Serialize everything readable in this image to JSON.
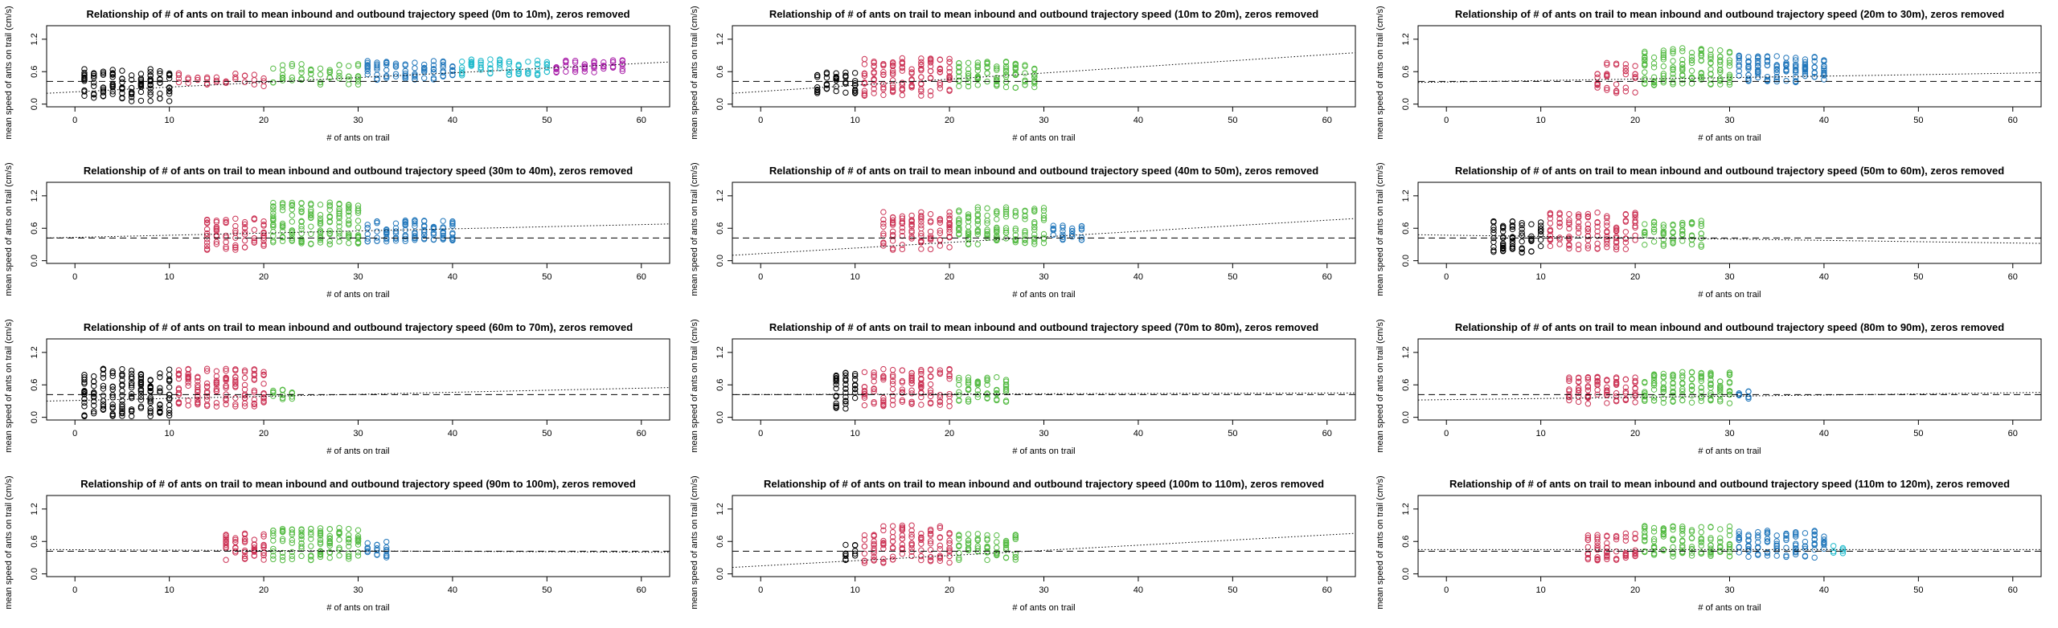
{
  "chart_data": [
    {
      "type": "scatter",
      "title": "Relationship of # of ants on trail to mean inbound and outbound trajectory speed (0m to 10m), zeros removed",
      "xlabel": "# of ants on trail",
      "ylabel": "mean speed of ants on trail (cm/s)",
      "xlim": [
        -3,
        63
      ],
      "ylim": [
        -0.05,
        1.45
      ],
      "xticks": [
        0,
        10,
        20,
        30,
        40,
        50,
        60
      ],
      "yticks": [
        0.0,
        0.6,
        1.2
      ],
      "ytick_labels": [
        "0.0",
        "0.6",
        "1.2"
      ],
      "dashed_mean": 0.42,
      "fit_line": {
        "x": [
          -3,
          63
        ],
        "y": [
          0.2,
          0.78
        ]
      },
      "point_groups": [
        {
          "color": "#000000",
          "from": 1,
          "to": 10,
          "center": 0.35,
          "spread": 0.3,
          "n": 14
        },
        {
          "color": "#CC3355",
          "from": 11,
          "to": 20,
          "center": 0.45,
          "spread": 0.12,
          "n": 4
        },
        {
          "color": "#55BB44",
          "from": 21,
          "to": 30,
          "center": 0.55,
          "spread": 0.2,
          "n": 7
        },
        {
          "color": "#2277BB",
          "from": 31,
          "to": 40,
          "center": 0.62,
          "spread": 0.18,
          "n": 9
        },
        {
          "color": "#22BBCC",
          "from": 41,
          "to": 50,
          "center": 0.68,
          "spread": 0.15,
          "n": 9
        },
        {
          "color": "#AA22AA",
          "from": 51,
          "to": 58,
          "center": 0.7,
          "spread": 0.12,
          "n": 8
        }
      ]
    },
    {
      "type": "scatter",
      "title": "Relationship of # of ants on trail to mean inbound and outbound trajectory speed (10m to 20m), zeros removed",
      "xlabel": "# of ants on trail",
      "ylabel": "mean speed of ants on trail (cm/s)",
      "xlim": [
        -3,
        63
      ],
      "ylim": [
        -0.05,
        1.45
      ],
      "xticks": [
        0,
        10,
        20,
        30,
        40,
        50,
        60
      ],
      "yticks": [
        0.0,
        0.6,
        1.2
      ],
      "ytick_labels": [
        "0.0",
        "0.6",
        "1.2"
      ],
      "dashed_mean": 0.42,
      "fit_line": {
        "x": [
          -3,
          63
        ],
        "y": [
          0.2,
          0.95
        ]
      },
      "point_groups": [
        {
          "color": "#000000",
          "from": 6,
          "to": 10,
          "center": 0.4,
          "spread": 0.2,
          "n": 12
        },
        {
          "color": "#CC3355",
          "from": 11,
          "to": 20,
          "center": 0.5,
          "spread": 0.35,
          "n": 14
        },
        {
          "color": "#55BB44",
          "from": 21,
          "to": 29,
          "center": 0.55,
          "spread": 0.25,
          "n": 12
        }
      ]
    },
    {
      "type": "scatter",
      "title": "Relationship of # of ants on trail to mean inbound and outbound trajectory speed (20m to 30m), zeros removed",
      "xlabel": "# of ants on trail",
      "ylabel": "mean speed of ants on trail (cm/s)",
      "xlim": [
        -3,
        63
      ],
      "ylim": [
        -0.05,
        1.45
      ],
      "xticks": [
        0,
        10,
        20,
        30,
        40,
        50,
        60
      ],
      "yticks": [
        0.0,
        0.6,
        1.2
      ],
      "ytick_labels": [
        "0.0",
        "0.6",
        "1.2"
      ],
      "dashed_mean": 0.42,
      "fit_line": {
        "x": [
          -3,
          63
        ],
        "y": [
          0.4,
          0.58
        ]
      },
      "point_groups": [
        {
          "color": "#CC3355",
          "from": 16,
          "to": 20,
          "center": 0.5,
          "spread": 0.3,
          "n": 10
        },
        {
          "color": "#55BB44",
          "from": 21,
          "to": 30,
          "center": 0.7,
          "spread": 0.35,
          "n": 16
        },
        {
          "color": "#2277BB",
          "from": 31,
          "to": 40,
          "center": 0.65,
          "spread": 0.25,
          "n": 14
        }
      ]
    },
    {
      "type": "scatter",
      "title": "Relationship of # of ants on trail to mean inbound and outbound trajectory speed (30m to 40m), zeros removed",
      "xlabel": "# of ants on trail",
      "ylabel": "mean speed of ants on trail (cm/s)",
      "xlim": [
        -3,
        63
      ],
      "ylim": [
        -0.05,
        1.45
      ],
      "xticks": [
        0,
        10,
        20,
        30,
        40,
        50,
        60
      ],
      "yticks": [
        0.0,
        0.6,
        1.2
      ],
      "ytick_labels": [
        "0.0",
        "0.6",
        "1.2"
      ],
      "dashed_mean": 0.42,
      "fit_line": {
        "x": [
          -3,
          63
        ],
        "y": [
          0.42,
          0.68
        ]
      },
      "point_groups": [
        {
          "color": "#CC3355",
          "from": 14,
          "to": 20,
          "center": 0.5,
          "spread": 0.3,
          "n": 12
        },
        {
          "color": "#55BB44",
          "from": 21,
          "to": 30,
          "center": 0.7,
          "spread": 0.4,
          "n": 18
        },
        {
          "color": "#2277BB",
          "from": 31,
          "to": 40,
          "center": 0.55,
          "spread": 0.2,
          "n": 12
        }
      ]
    },
    {
      "type": "scatter",
      "title": "Relationship of # of ants on trail to mean inbound and outbound trajectory speed (40m to 50m), zeros removed",
      "xlabel": "# of ants on trail",
      "ylabel": "mean speed of ants on trail (cm/s)",
      "xlim": [
        -3,
        63
      ],
      "ylim": [
        -0.05,
        1.45
      ],
      "xticks": [
        0,
        10,
        20,
        30,
        40,
        50,
        60
      ],
      "yticks": [
        0.0,
        0.6,
        1.2
      ],
      "ytick_labels": [
        "0.0",
        "0.6",
        "1.2"
      ],
      "dashed_mean": 0.42,
      "fit_line": {
        "x": [
          -3,
          63
        ],
        "y": [
          0.1,
          0.78
        ]
      },
      "point_groups": [
        {
          "color": "#CC3355",
          "from": 13,
          "to": 20,
          "center": 0.55,
          "spread": 0.35,
          "n": 14
        },
        {
          "color": "#55BB44",
          "from": 21,
          "to": 30,
          "center": 0.65,
          "spread": 0.35,
          "n": 16
        },
        {
          "color": "#2277BB",
          "from": 31,
          "to": 34,
          "center": 0.5,
          "spread": 0.15,
          "n": 8
        }
      ]
    },
    {
      "type": "scatter",
      "title": "Relationship of # of ants on trail to mean inbound and outbound trajectory speed (50m to 60m), zeros removed",
      "xlabel": "# of ants on trail",
      "ylabel": "mean speed of ants on trail (cm/s)",
      "xlim": [
        -3,
        63
      ],
      "ylim": [
        -0.05,
        1.45
      ],
      "xticks": [
        0,
        10,
        20,
        30,
        40,
        50,
        60
      ],
      "yticks": [
        0.0,
        0.6,
        1.2
      ],
      "ytick_labels": [
        "0.0",
        "0.6",
        "1.2"
      ],
      "dashed_mean": 0.42,
      "fit_line": {
        "x": [
          -3,
          63
        ],
        "y": [
          0.48,
          0.32
        ]
      },
      "point_groups": [
        {
          "color": "#000000",
          "from": 5,
          "to": 10,
          "center": 0.45,
          "spread": 0.3,
          "n": 14
        },
        {
          "color": "#CC3355",
          "from": 11,
          "to": 20,
          "center": 0.55,
          "spread": 0.35,
          "n": 14
        },
        {
          "color": "#55BB44",
          "from": 21,
          "to": 27,
          "center": 0.5,
          "spread": 0.25,
          "n": 10
        }
      ]
    },
    {
      "type": "scatter",
      "title": "Relationship of # of ants on trail to mean inbound and outbound trajectory speed (60m to 70m), zeros removed",
      "xlabel": "# of ants on trail",
      "ylabel": "mean speed of ants on trail (cm/s)",
      "xlim": [
        -3,
        63
      ],
      "ylim": [
        -0.05,
        1.45
      ],
      "xticks": [
        0,
        10,
        20,
        30,
        40,
        50,
        60
      ],
      "yticks": [
        0.0,
        0.6,
        1.2
      ],
      "ytick_labels": [
        "0.0",
        "0.6",
        "1.2"
      ],
      "dashed_mean": 0.42,
      "fit_line": {
        "x": [
          -3,
          63
        ],
        "y": [
          0.3,
          0.55
        ]
      },
      "point_groups": [
        {
          "color": "#000000",
          "from": 1,
          "to": 10,
          "center": 0.45,
          "spread": 0.45,
          "n": 20
        },
        {
          "color": "#CC3355",
          "from": 11,
          "to": 20,
          "center": 0.55,
          "spread": 0.35,
          "n": 16
        },
        {
          "color": "#55BB44",
          "from": 21,
          "to": 23,
          "center": 0.42,
          "spread": 0.1,
          "n": 6
        }
      ]
    },
    {
      "type": "scatter",
      "title": "Relationship of # of ants on trail to mean inbound and outbound trajectory speed (70m to 80m), zeros removed",
      "xlabel": "# of ants on trail",
      "ylabel": "mean speed of ants on trail (cm/s)",
      "xlim": [
        -3,
        63
      ],
      "ylim": [
        -0.05,
        1.45
      ],
      "xticks": [
        0,
        10,
        20,
        30,
        40,
        50,
        60
      ],
      "yticks": [
        0.0,
        0.6,
        1.2
      ],
      "ytick_labels": [
        "0.0",
        "0.6",
        "1.2"
      ],
      "dashed_mean": 0.42,
      "fit_line": {
        "x": [
          -3,
          63
        ],
        "y": [
          0.42,
          0.45
        ]
      },
      "point_groups": [
        {
          "color": "#000000",
          "from": 8,
          "to": 10,
          "center": 0.5,
          "spread": 0.35,
          "n": 14
        },
        {
          "color": "#CC3355",
          "from": 11,
          "to": 20,
          "center": 0.55,
          "spread": 0.35,
          "n": 14
        },
        {
          "color": "#55BB44",
          "from": 21,
          "to": 26,
          "center": 0.5,
          "spread": 0.25,
          "n": 10
        }
      ]
    },
    {
      "type": "scatter",
      "title": "Relationship of # of ants on trail to mean inbound and outbound trajectory speed (80m to 90m), zeros removed",
      "xlabel": "# of ants on trail",
      "ylabel": "mean speed of ants on trail (cm/s)",
      "xlim": [
        -3,
        63
      ],
      "ylim": [
        -0.05,
        1.45
      ],
      "xticks": [
        0,
        10,
        20,
        30,
        40,
        50,
        60
      ],
      "yticks": [
        0.0,
        0.6,
        1.2
      ],
      "ytick_labels": [
        "0.0",
        "0.6",
        "1.2"
      ],
      "dashed_mean": 0.42,
      "fit_line": {
        "x": [
          -3,
          63
        ],
        "y": [
          0.32,
          0.46
        ]
      },
      "point_groups": [
        {
          "color": "#CC3355",
          "from": 13,
          "to": 20,
          "center": 0.5,
          "spread": 0.25,
          "n": 12
        },
        {
          "color": "#55BB44",
          "from": 21,
          "to": 30,
          "center": 0.55,
          "spread": 0.3,
          "n": 14
        },
        {
          "color": "#2277BB",
          "from": 31,
          "to": 32,
          "center": 0.42,
          "spread": 0.08,
          "n": 6
        }
      ]
    },
    {
      "type": "scatter",
      "title": "Relationship of # of ants on trail to mean inbound and outbound trajectory speed (90m to 100m), zeros removed",
      "xlabel": "# of ants on trail",
      "ylabel": "mean speed of ants on trail (cm/s)",
      "xlim": [
        -3,
        63
      ],
      "ylim": [
        -0.05,
        1.45
      ],
      "xticks": [
        0,
        10,
        20,
        30,
        40,
        50,
        60
      ],
      "yticks": [
        0.0,
        0.6,
        1.2
      ],
      "ytick_labels": [
        "0.0",
        "0.6",
        "1.2"
      ],
      "dashed_mean": 0.42,
      "fit_line": {
        "x": [
          -3,
          63
        ],
        "y": [
          0.45,
          0.4
        ]
      },
      "point_groups": [
        {
          "color": "#CC3355",
          "from": 16,
          "to": 20,
          "center": 0.5,
          "spread": 0.25,
          "n": 12
        },
        {
          "color": "#55BB44",
          "from": 21,
          "to": 30,
          "center": 0.55,
          "spread": 0.3,
          "n": 14
        },
        {
          "color": "#2277BB",
          "from": 31,
          "to": 33,
          "center": 0.45,
          "spread": 0.15,
          "n": 8
        }
      ]
    },
    {
      "type": "scatter",
      "title": "Relationship of # of ants on trail to mean inbound and outbound trajectory speed (100m to 110m), zeros removed",
      "xlabel": "# of ants on trail",
      "ylabel": "mean speed of ants on trail (cm/s)",
      "xlim": [
        -3,
        63
      ],
      "ylim": [
        -0.05,
        1.45
      ],
      "xticks": [
        0,
        10,
        20,
        30,
        40,
        50,
        60
      ],
      "yticks": [
        0.0,
        0.6,
        1.2
      ],
      "ytick_labels": [
        "0.0",
        "0.6",
        "1.2"
      ],
      "dashed_mean": 0.42,
      "fit_line": {
        "x": [
          -3,
          63
        ],
        "y": [
          0.12,
          0.75
        ]
      },
      "point_groups": [
        {
          "color": "#000000",
          "from": 9,
          "to": 10,
          "center": 0.4,
          "spread": 0.15,
          "n": 8
        },
        {
          "color": "#CC3355",
          "from": 11,
          "to": 20,
          "center": 0.55,
          "spread": 0.35,
          "n": 14
        },
        {
          "color": "#55BB44",
          "from": 21,
          "to": 27,
          "center": 0.5,
          "spread": 0.25,
          "n": 10
        }
      ]
    },
    {
      "type": "scatter",
      "title": "Relationship of # of ants on trail to mean inbound and outbound trajectory speed (110m to 120m), zeros removed",
      "xlabel": "# of ants on trail",
      "ylabel": "mean speed of ants on trail (cm/s)",
      "xlim": [
        -3,
        63
      ],
      "ylim": [
        -0.05,
        1.45
      ],
      "xticks": [
        0,
        10,
        20,
        30,
        40,
        50,
        60
      ],
      "yticks": [
        0.0,
        0.6,
        1.2
      ],
      "ytick_labels": [
        "0.0",
        "0.6",
        "1.2"
      ],
      "dashed_mean": 0.42,
      "fit_line": {
        "x": [
          -3,
          63
        ],
        "y": [
          0.45,
          0.45
        ]
      },
      "point_groups": [
        {
          "color": "#CC3355",
          "from": 15,
          "to": 20,
          "center": 0.5,
          "spread": 0.25,
          "n": 12
        },
        {
          "color": "#55BB44",
          "from": 21,
          "to": 30,
          "center": 0.6,
          "spread": 0.3,
          "n": 14
        },
        {
          "color": "#2277BB",
          "from": 31,
          "to": 40,
          "center": 0.55,
          "spread": 0.25,
          "n": 12
        },
        {
          "color": "#22BBCC",
          "from": 41,
          "to": 42,
          "center": 0.45,
          "spread": 0.08,
          "n": 5
        }
      ]
    }
  ]
}
